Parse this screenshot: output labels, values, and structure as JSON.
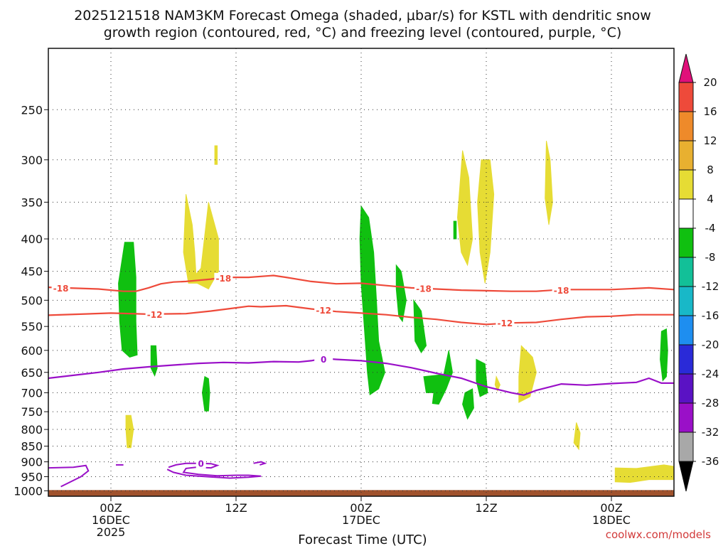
{
  "chart_data": {
    "type": "time-height cross section",
    "title_line1": "2025121518 NAM3KM Forecast Omega (shaded, μbar/s) for KSTL with dendritic snow",
    "title_line2": "growth region (contoured, red, °C) and freezing level (contoured, purple, °C)",
    "xlabel": "Forecast Time (UTC)",
    "credit": "coolwx.com/models",
    "x_range_hours": [
      -5,
      45
    ],
    "y_range_hpa": [
      1020,
      200
    ],
    "y_ticks": [
      250,
      300,
      350,
      400,
      450,
      500,
      550,
      600,
      650,
      700,
      750,
      800,
      850,
      900,
      950,
      1000
    ],
    "x_ticks": [
      {
        "hour": 0,
        "lines": [
          "00Z",
          "16DEC",
          "2025"
        ]
      },
      {
        "hour": 10,
        "lines": [
          "12Z"
        ]
      },
      {
        "hour": 20,
        "lines": [
          "00Z",
          "17DEC"
        ]
      },
      {
        "hour": 30,
        "lines": [
          "12Z"
        ]
      },
      {
        "hour": 40,
        "lines": [
          "00Z",
          "18DEC"
        ]
      }
    ],
    "colorbar": {
      "levels": [
        {
          "lo": -36,
          "hi": -32,
          "color": "#a8a8a8"
        },
        {
          "lo": -32,
          "hi": -28,
          "color": "#9a10c8"
        },
        {
          "lo": -28,
          "hi": -24,
          "color": "#5a12c4"
        },
        {
          "lo": -24,
          "hi": -20,
          "color": "#2a2ad8"
        },
        {
          "lo": -20,
          "hi": -16,
          "color": "#1e8ef0"
        },
        {
          "lo": -16,
          "hi": -12,
          "color": "#18b8c8"
        },
        {
          "lo": -12,
          "hi": -8,
          "color": "#12c098"
        },
        {
          "lo": -8,
          "hi": -4,
          "color": "#10c010"
        },
        {
          "lo": -4,
          "hi": 4,
          "color": "#ffffff"
        },
        {
          "lo": 4,
          "hi": 8,
          "color": "#e6dc34"
        },
        {
          "lo": 8,
          "hi": 12,
          "color": "#e8b030"
        },
        {
          "lo": 12,
          "hi": 16,
          "color": "#ee8a2a"
        },
        {
          "lo": 16,
          "hi": 20,
          "color": "#ee4a3a"
        }
      ],
      "tick_labels": [
        "20",
        "16",
        "12",
        "8",
        "4",
        "-4",
        "-8",
        "-12",
        "-16",
        "-20",
        "-24",
        "-28",
        "-32",
        "-36"
      ],
      "over_color": "#e0107a",
      "under_color": "#000000"
    },
    "red_isotherms": [
      {
        "label": "-18",
        "points": [
          [
            -5,
            477
          ],
          [
            -1,
            480
          ],
          [
            1,
            484
          ],
          [
            2,
            484
          ],
          [
            3,
            478
          ],
          [
            4,
            471
          ],
          [
            5,
            468
          ],
          [
            6,
            467
          ],
          [
            8,
            463
          ],
          [
            9,
            460
          ],
          [
            11,
            460
          ],
          [
            13,
            457
          ],
          [
            14,
            460
          ],
          [
            16,
            467
          ],
          [
            18,
            471
          ],
          [
            20,
            470
          ],
          [
            22,
            474
          ],
          [
            24,
            478
          ],
          [
            26,
            480
          ],
          [
            28,
            482
          ],
          [
            30,
            483
          ],
          [
            32,
            484
          ],
          [
            34,
            484
          ],
          [
            36,
            481
          ],
          [
            38,
            481
          ],
          [
            40,
            481
          ],
          [
            43,
            478
          ],
          [
            45,
            481
          ]
        ],
        "labels_at": [
          [
            -4,
            478
          ],
          [
            9,
            461
          ],
          [
            25,
            479
          ],
          [
            36,
            482
          ]
        ]
      },
      {
        "label": "-12",
        "points": [
          [
            -5,
            528
          ],
          [
            0,
            524
          ],
          [
            3,
            526
          ],
          [
            6,
            525
          ],
          [
            8,
            520
          ],
          [
            10,
            514
          ],
          [
            11,
            511
          ],
          [
            12,
            512
          ],
          [
            14,
            510
          ],
          [
            16,
            516
          ],
          [
            18,
            521
          ],
          [
            20,
            524
          ],
          [
            22,
            527
          ],
          [
            24,
            532
          ],
          [
            26,
            536
          ],
          [
            28,
            542
          ],
          [
            30,
            546
          ],
          [
            32,
            543
          ],
          [
            34,
            542
          ],
          [
            36,
            536
          ],
          [
            38,
            531
          ],
          [
            40,
            530
          ],
          [
            42,
            527
          ],
          [
            44,
            527
          ],
          [
            45,
            527
          ]
        ],
        "labels_at": [
          [
            3.5,
            526
          ],
          [
            17,
            518
          ],
          [
            31.5,
            543
          ]
        ]
      },
      {
        "label": "0",
        "points": [
          [
            -5,
            664
          ],
          [
            -1,
            650
          ],
          [
            1,
            642
          ],
          [
            3,
            637
          ],
          [
            5,
            633
          ],
          [
            7,
            629
          ],
          [
            9,
            627
          ],
          [
            11,
            628
          ],
          [
            13,
            625
          ],
          [
            15,
            626
          ],
          [
            16,
            623
          ],
          [
            17,
            618
          ],
          [
            18,
            620
          ],
          [
            20,
            623
          ],
          [
            22,
            629
          ],
          [
            24,
            639
          ],
          [
            26,
            652
          ],
          [
            28,
            664
          ],
          [
            30,
            685
          ],
          [
            32,
            700
          ],
          [
            33,
            706
          ],
          [
            34,
            694
          ],
          [
            36,
            678
          ],
          [
            38,
            681
          ],
          [
            40,
            677
          ],
          [
            42,
            674
          ],
          [
            43,
            664
          ],
          [
            44,
            676
          ],
          [
            45,
            676
          ]
        ],
        "labels_at": [
          [
            17,
            619
          ]
        ]
      }
    ],
    "freezing_level_label": "0",
    "omega_shading_note": "green = -8 to -4 μbar/s (upward motion), yellow = 4 to 8 μbar/s",
    "omega_regions": [
      {
        "color": "#10c010",
        "points": [
          [
            1.1,
            405
          ],
          [
            1.8,
            405
          ],
          [
            2.0,
            460
          ],
          [
            2.0,
            540
          ],
          [
            2.1,
            610
          ],
          [
            1.5,
            615
          ],
          [
            0.9,
            600
          ],
          [
            0.7,
            540
          ],
          [
            0.6,
            470
          ]
        ]
      },
      {
        "color": "#10c010",
        "points": [
          [
            3.2,
            590
          ],
          [
            3.6,
            590
          ],
          [
            3.7,
            640
          ],
          [
            3.5,
            658
          ],
          [
            3.2,
            640
          ]
        ]
      },
      {
        "color": "#10c010",
        "points": [
          [
            7.5,
            660
          ],
          [
            7.8,
            665
          ],
          [
            7.9,
            700
          ],
          [
            7.8,
            748
          ],
          [
            7.5,
            748
          ],
          [
            7.3,
            700
          ]
        ]
      },
      {
        "color": "#10c010",
        "points": [
          [
            20.0,
            355
          ],
          [
            20.6,
            370
          ],
          [
            21.0,
            420
          ],
          [
            21.2,
            490
          ],
          [
            21.4,
            580
          ],
          [
            21.9,
            650
          ],
          [
            21.4,
            690
          ],
          [
            20.7,
            705
          ],
          [
            20.5,
            650
          ],
          [
            20.3,
            570
          ],
          [
            20.0,
            470
          ],
          [
            19.9,
            400
          ]
        ]
      },
      {
        "color": "#10c010",
        "points": [
          [
            22.8,
            440
          ],
          [
            23.2,
            450
          ],
          [
            23.6,
            500
          ],
          [
            23.3,
            540
          ],
          [
            23.0,
            530
          ],
          [
            22.8,
            480
          ]
        ]
      },
      {
        "color": "#10c010",
        "points": [
          [
            24.2,
            500
          ],
          [
            24.8,
            520
          ],
          [
            25.2,
            590
          ],
          [
            24.8,
            605
          ],
          [
            24.3,
            580
          ]
        ]
      },
      {
        "color": "#10c010",
        "points": [
          [
            25.0,
            660
          ],
          [
            26.6,
            655
          ],
          [
            27.0,
            600
          ],
          [
            27.3,
            650
          ],
          [
            26.8,
            690
          ],
          [
            26.2,
            730
          ],
          [
            25.7,
            728
          ],
          [
            25.8,
            700
          ],
          [
            25.2,
            700
          ]
        ]
      },
      {
        "color": "#10c010",
        "points": [
          [
            28.3,
            700
          ],
          [
            28.9,
            690
          ],
          [
            29.0,
            740
          ],
          [
            28.5,
            770
          ],
          [
            28.1,
            730
          ]
        ]
      },
      {
        "color": "#10c010",
        "points": [
          [
            29.2,
            620
          ],
          [
            29.9,
            630
          ],
          [
            30.1,
            700
          ],
          [
            29.5,
            710
          ],
          [
            29.2,
            670
          ]
        ]
      },
      {
        "color": "#10c010",
        "points": [
          [
            27.4,
            375
          ],
          [
            27.6,
            375
          ],
          [
            27.6,
            400
          ],
          [
            27.4,
            400
          ]
        ]
      },
      {
        "color": "#10c010",
        "points": [
          [
            44.0,
            560
          ],
          [
            44.4,
            555
          ],
          [
            44.5,
            600
          ],
          [
            44.4,
            660
          ],
          [
            44.1,
            670
          ],
          [
            43.9,
            620
          ]
        ]
      },
      {
        "color": "#e6dc34",
        "points": [
          [
            8.3,
            285
          ],
          [
            8.5,
            285
          ],
          [
            8.5,
            305
          ],
          [
            8.3,
            305
          ]
        ]
      },
      {
        "color": "#e6dc34",
        "points": [
          [
            6.0,
            340
          ],
          [
            6.5,
            380
          ],
          [
            6.7,
            420
          ],
          [
            6.8,
            455
          ],
          [
            7.2,
            445
          ],
          [
            7.8,
            350
          ],
          [
            8.6,
            400
          ],
          [
            8.6,
            450
          ],
          [
            7.8,
            480
          ],
          [
            6.9,
            470
          ],
          [
            6.2,
            470
          ],
          [
            5.8,
            420
          ]
        ]
      },
      {
        "color": "#e6dc34",
        "points": [
          [
            1.2,
            760
          ],
          [
            1.6,
            760
          ],
          [
            1.8,
            800
          ],
          [
            1.6,
            855
          ],
          [
            1.3,
            855
          ],
          [
            1.2,
            800
          ]
        ]
      },
      {
        "color": "#e6dc34",
        "points": [
          [
            28.1,
            290
          ],
          [
            28.6,
            320
          ],
          [
            28.9,
            400
          ],
          [
            28.5,
            440
          ],
          [
            28.0,
            420
          ],
          [
            27.7,
            370
          ]
        ]
      },
      {
        "color": "#e6dc34",
        "points": [
          [
            29.6,
            300
          ],
          [
            30.3,
            300
          ],
          [
            30.6,
            340
          ],
          [
            30.3,
            420
          ],
          [
            29.9,
            470
          ],
          [
            29.5,
            420
          ],
          [
            29.3,
            350
          ]
        ]
      },
      {
        "color": "#e6dc34",
        "points": [
          [
            34.8,
            280
          ],
          [
            35.1,
            300
          ],
          [
            35.3,
            350
          ],
          [
            35.0,
            380
          ],
          [
            34.7,
            345
          ]
        ]
      },
      {
        "color": "#e6dc34",
        "points": [
          [
            32.8,
            590
          ],
          [
            33.7,
            615
          ],
          [
            34.0,
            650
          ],
          [
            33.5,
            710
          ],
          [
            32.6,
            725
          ],
          [
            32.6,
            660
          ]
        ]
      },
      {
        "color": "#e6dc34",
        "points": [
          [
            30.8,
            660
          ],
          [
            31.1,
            680
          ],
          [
            30.9,
            695
          ],
          [
            30.7,
            680
          ]
        ]
      },
      {
        "color": "#e6dc34",
        "points": [
          [
            37.2,
            780
          ],
          [
            37.5,
            810
          ],
          [
            37.4,
            860
          ],
          [
            37.0,
            840
          ]
        ]
      },
      {
        "color": "#e6dc34",
        "points": [
          [
            40.3,
            920
          ],
          [
            42.0,
            922
          ],
          [
            44.2,
            910
          ],
          [
            45,
            915
          ],
          [
            45,
            960
          ],
          [
            43,
            960
          ],
          [
            41.5,
            970
          ],
          [
            40.3,
            968
          ]
        ]
      }
    ]
  }
}
